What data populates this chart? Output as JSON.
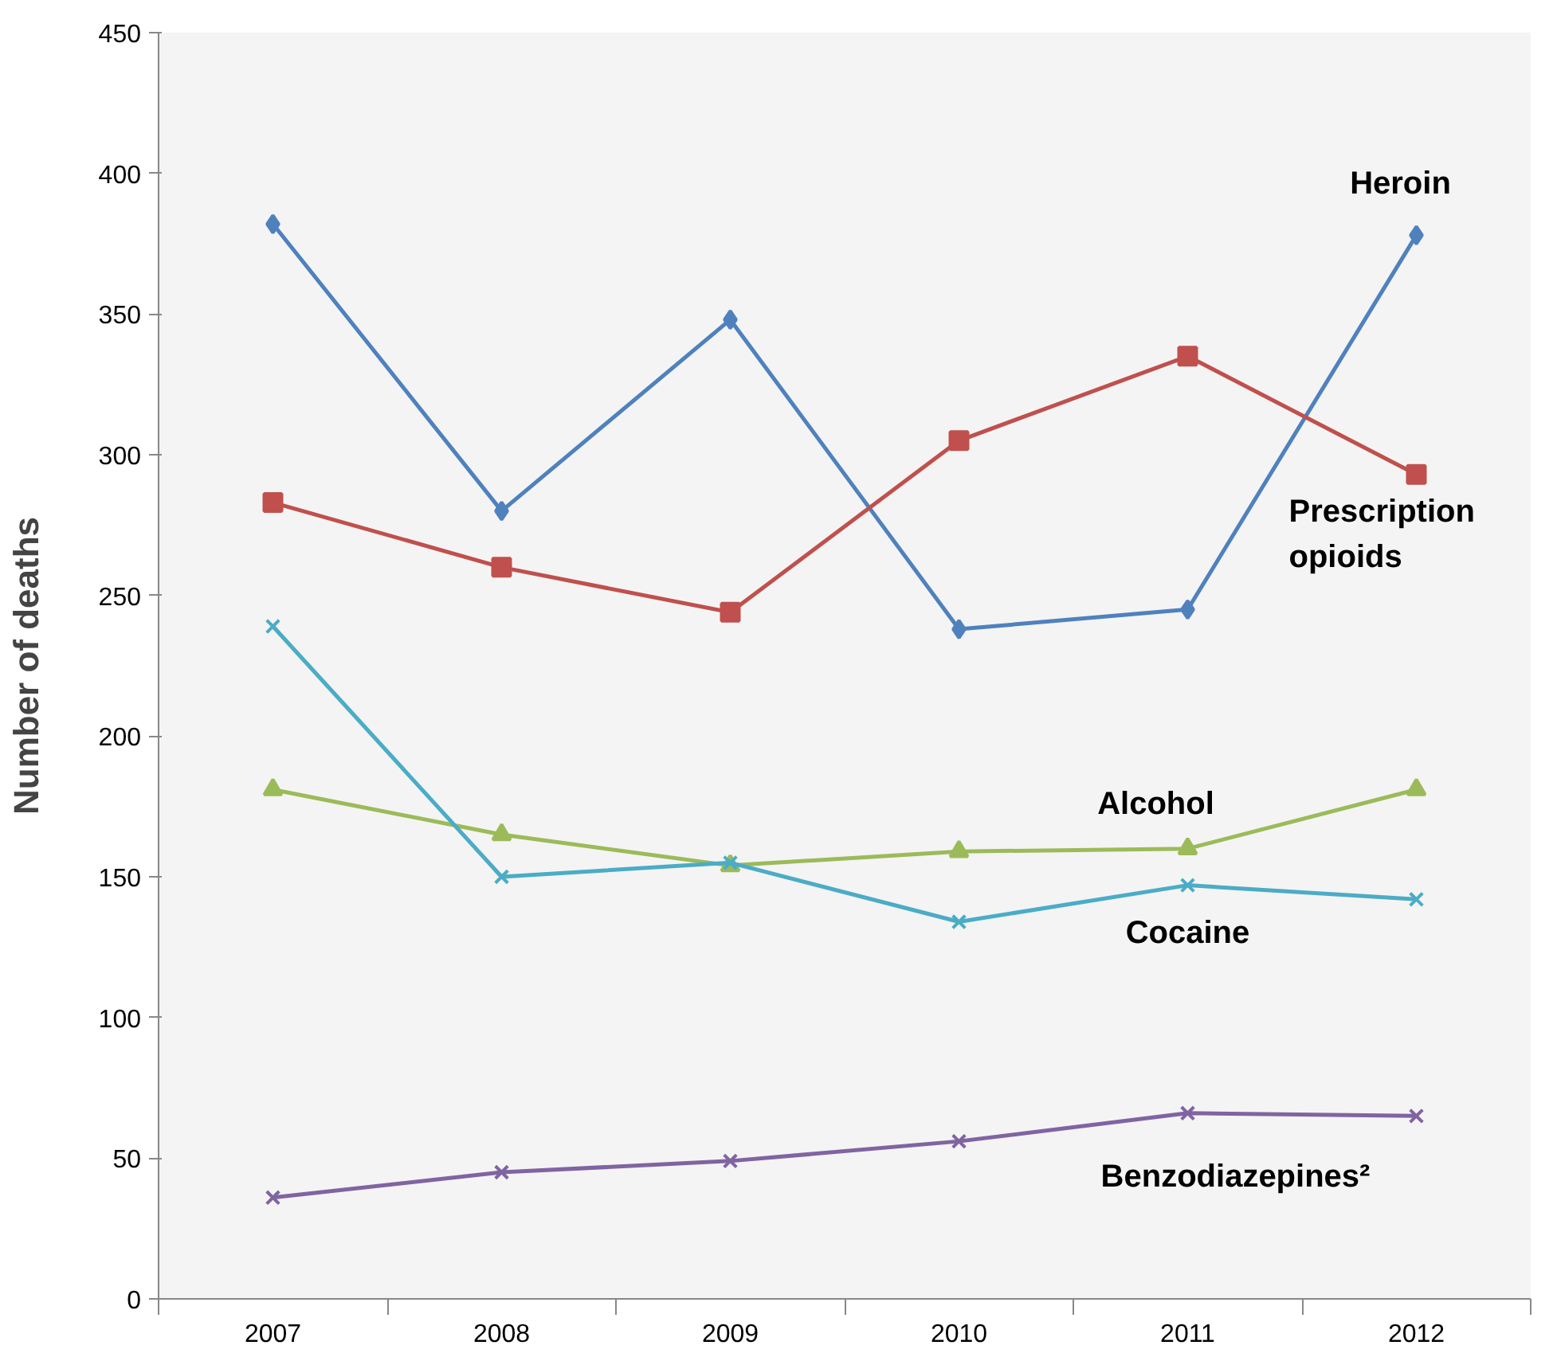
{
  "chart_data": {
    "type": "line",
    "ylabel": "Number of deaths",
    "categories": [
      "2007",
      "2008",
      "2009",
      "2010",
      "2011",
      "2012"
    ],
    "series": [
      {
        "name": "Heroin",
        "color": "#4f81bd",
        "marker": "diamond",
        "values": [
          382,
          280,
          348,
          238,
          245,
          378
        ]
      },
      {
        "name": "Prescription\nopioids",
        "color": "#c0504d",
        "marker": "square",
        "values": [
          283,
          260,
          244,
          305,
          335,
          293
        ]
      },
      {
        "name": "Alcohol",
        "color": "#9bbb59",
        "marker": "triangle",
        "values": [
          181,
          165,
          154,
          159,
          160,
          181
        ]
      },
      {
        "name": "Cocaine",
        "color": "#4bacc6",
        "marker": "cross",
        "values": [
          239,
          150,
          155,
          134,
          147,
          142
        ]
      },
      {
        "name": "Benzodiazepines²",
        "color": "#8064a2",
        "marker": "cross",
        "values": [
          36,
          45,
          49,
          56,
          66,
          65
        ]
      }
    ],
    "ylim": [
      0,
      450
    ],
    "yticks": [
      0,
      50,
      100,
      150,
      200,
      250,
      300,
      350,
      400,
      450
    ],
    "grid": false
  }
}
